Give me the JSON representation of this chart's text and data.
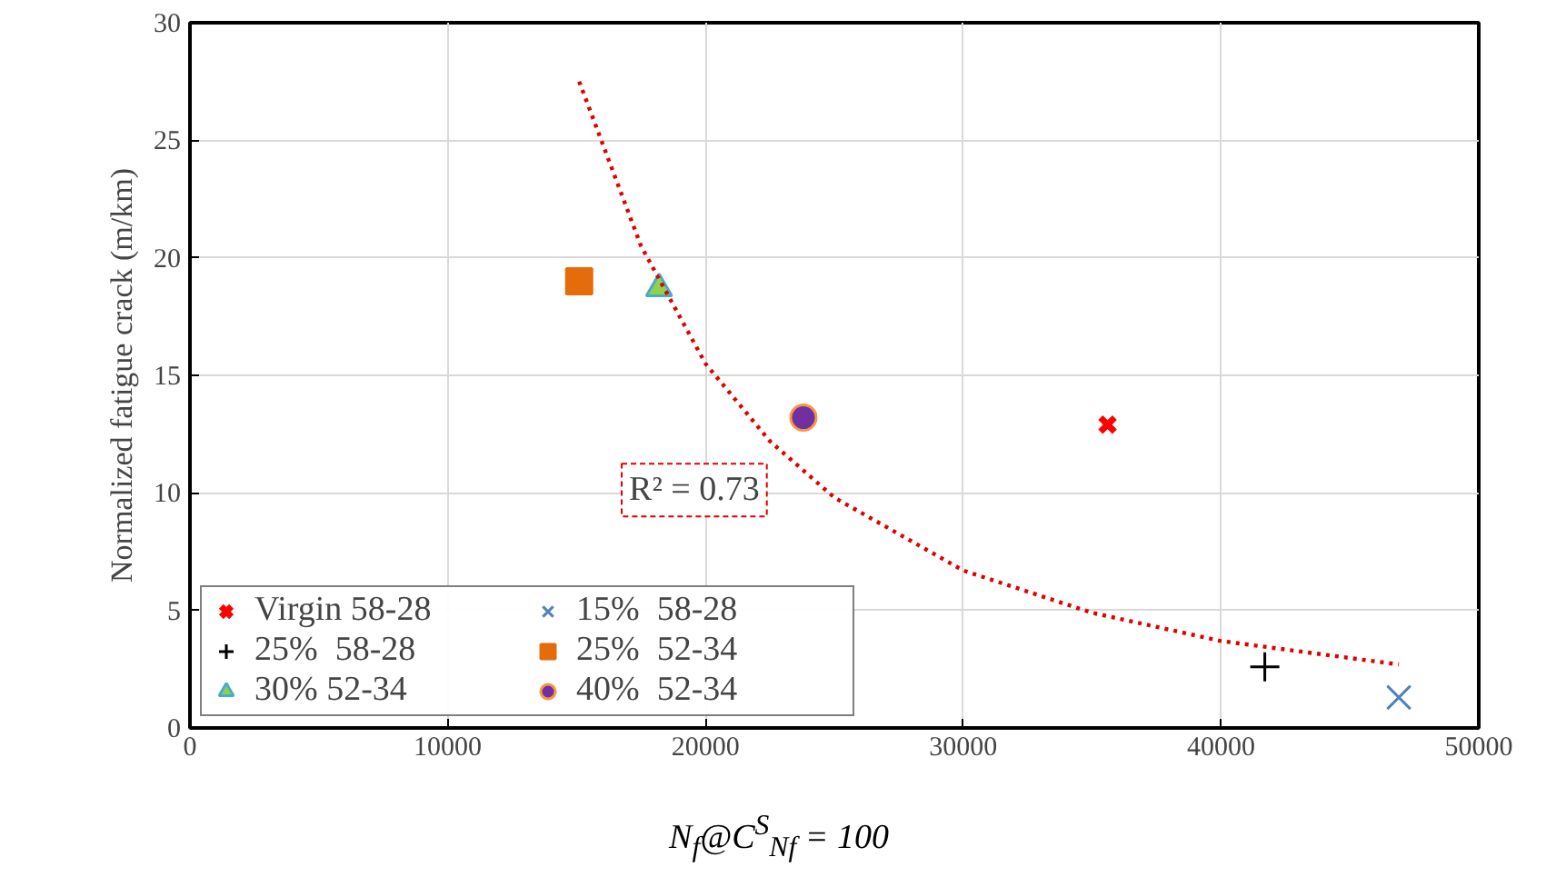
{
  "chart_data": {
    "type": "scatter",
    "xlabel": "N$_{f}$@C$^{S}$$_{Nf}$ = 100",
    "ylabel": "Normalized fatigue crack (m/km)",
    "xlim": [
      0,
      50000
    ],
    "ylim": [
      0,
      30
    ],
    "xticks": [
      0,
      10000,
      20000,
      30000,
      40000,
      50000
    ],
    "yticks": [
      0,
      5,
      10,
      15,
      20,
      25,
      30
    ],
    "grid": true,
    "legend": "bottom left",
    "series": [
      {
        "name": "Virgin 58-28",
        "color": "#ff0000",
        "marker": "cross",
        "x": [
          35600
        ],
        "values": [
          12.9
        ]
      },
      {
        "name": "15%  58-28",
        "color": "#4f81bd",
        "marker": "cross",
        "x": [
          46900
        ],
        "values": [
          1.3
        ]
      },
      {
        "name": "25%  58-28",
        "color": "#000000",
        "marker": "cross",
        "x": [
          41700
        ],
        "values": [
          2.6
        ]
      },
      {
        "name": "25%  52-34",
        "color": "#e46c0a",
        "marker": "square",
        "x": [
          15100
        ],
        "values": [
          19.0
        ]
      },
      {
        "name": "30% 52-34",
        "color": "#92d050",
        "marker": "triangle",
        "x": [
          18200
        ],
        "values": [
          18.7
        ]
      },
      {
        "name": "40%  52-34",
        "color": "#7030a0",
        "marker": "circle",
        "x": [
          23800
        ],
        "values": [
          13.2
        ]
      },
      {
        "type": "line",
        "color": "#e00000",
        "line_style": "dotted",
        "x": [
          15100,
          17500,
          20000,
          22500,
          25000,
          30000,
          35000,
          40000,
          46900
        ],
        "values": [
          27.5,
          20.5,
          15.5,
          12.2,
          9.8,
          6.7,
          4.9,
          3.7,
          2.7
        ]
      }
    ],
    "annotations": [
      "R² = 0.73"
    ]
  }
}
